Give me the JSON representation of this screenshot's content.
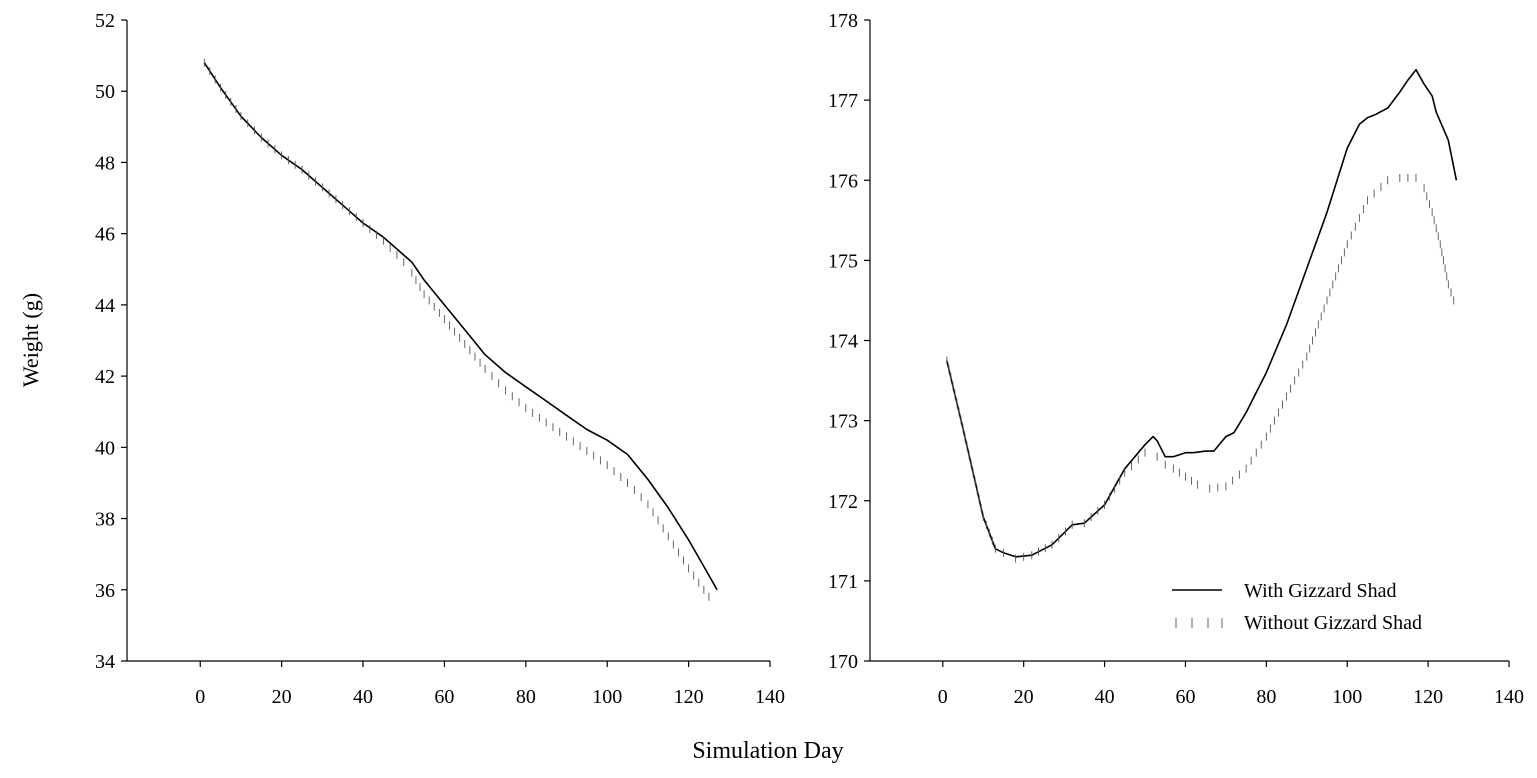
{
  "figure": {
    "ylabel": "Weight (g)",
    "xlabel": "Simulation Day"
  },
  "legend": {
    "with_label": "With Gizzard Shad",
    "without_label": "Without Gizzard Shad"
  },
  "chart_data": [
    {
      "type": "line",
      "title": "",
      "xlabel": "Simulation Day",
      "ylabel": "Weight (g)",
      "xlim": [
        -18,
        140
      ],
      "ylim": [
        34,
        52
      ],
      "xticks": [
        0,
        20,
        40,
        60,
        80,
        100,
        120,
        140
      ],
      "yticks": [
        34,
        36,
        38,
        40,
        42,
        44,
        46,
        48,
        50,
        52
      ],
      "grid": false,
      "legend": "none",
      "series": [
        {
          "name": "With Gizzard Shad",
          "style": "solid",
          "x": [
            1,
            5,
            10,
            15,
            20,
            25,
            30,
            35,
            40,
            45,
            50,
            52,
            55,
            60,
            65,
            70,
            75,
            80,
            85,
            90,
            95,
            100,
            105,
            110,
            115,
            120,
            125,
            127
          ],
          "y": [
            50.8,
            50.1,
            49.3,
            48.7,
            48.2,
            47.8,
            47.3,
            46.8,
            46.3,
            45.9,
            45.4,
            45.2,
            44.7,
            44.0,
            43.3,
            42.6,
            42.1,
            41.7,
            41.3,
            40.9,
            40.5,
            40.2,
            39.8,
            39.1,
            38.3,
            37.4,
            36.4,
            36.0
          ]
        },
        {
          "name": "Without Gizzard Shad",
          "style": "dotted",
          "x": [
            1,
            5,
            10,
            15,
            20,
            25,
            30,
            35,
            40,
            45,
            50,
            52,
            55,
            60,
            65,
            70,
            75,
            80,
            85,
            90,
            95,
            100,
            105,
            110,
            115,
            120,
            125,
            127
          ],
          "y": [
            50.8,
            50.1,
            49.3,
            48.7,
            48.2,
            47.8,
            47.3,
            46.8,
            46.3,
            45.8,
            45.2,
            44.9,
            44.3,
            43.6,
            42.9,
            42.2,
            41.6,
            41.1,
            40.7,
            40.3,
            39.9,
            39.5,
            39.0,
            38.4,
            37.5,
            36.6,
            35.8,
            35.5
          ]
        }
      ]
    },
    {
      "type": "line",
      "title": "",
      "xlabel": "Simulation Day",
      "ylabel": "",
      "xlim": [
        -18,
        140
      ],
      "ylim": [
        170,
        178
      ],
      "xticks": [
        0,
        20,
        40,
        60,
        80,
        100,
        120,
        140
      ],
      "yticks": [
        170,
        171,
        172,
        173,
        174,
        175,
        176,
        177,
        178
      ],
      "grid": false,
      "legend": "bottom-right",
      "series": [
        {
          "name": "With Gizzard Shad",
          "style": "solid",
          "x": [
            1,
            5,
            10,
            13,
            15,
            18,
            22,
            27,
            32,
            35,
            40,
            45,
            50,
            52,
            53,
            55,
            57,
            60,
            62,
            65,
            67,
            70,
            72,
            75,
            80,
            85,
            90,
            95,
            100,
            103,
            105,
            107,
            110,
            113,
            115,
            117,
            119,
            121,
            122,
            125,
            127
          ],
          "y": [
            173.75,
            172.9,
            171.8,
            171.4,
            171.35,
            171.3,
            171.32,
            171.45,
            171.7,
            171.72,
            171.95,
            172.4,
            172.7,
            172.8,
            172.75,
            172.55,
            172.55,
            172.6,
            172.6,
            172.62,
            172.62,
            172.8,
            172.85,
            173.1,
            173.6,
            174.2,
            174.9,
            175.6,
            176.4,
            176.7,
            176.78,
            176.82,
            176.9,
            177.1,
            177.25,
            177.38,
            177.2,
            177.05,
            176.85,
            176.5,
            176.0
          ]
        },
        {
          "name": "Without Gizzard Shad",
          "style": "dotted",
          "x": [
            1,
            5,
            10,
            13,
            15,
            18,
            22,
            27,
            32,
            35,
            40,
            45,
            50,
            53,
            55,
            57,
            60,
            63,
            66,
            70,
            75,
            80,
            85,
            90,
            95,
            100,
            105,
            110,
            113,
            115,
            117,
            119,
            121,
            123,
            125,
            127
          ],
          "y": [
            173.75,
            172.9,
            171.8,
            171.4,
            171.35,
            171.28,
            171.32,
            171.45,
            171.7,
            171.72,
            171.95,
            172.35,
            172.6,
            172.55,
            172.45,
            172.4,
            172.3,
            172.2,
            172.15,
            172.18,
            172.4,
            172.8,
            173.3,
            173.8,
            174.5,
            175.2,
            175.75,
            176.0,
            176.03,
            176.03,
            176.03,
            175.9,
            175.6,
            175.2,
            174.7,
            174.4
          ]
        }
      ]
    }
  ]
}
